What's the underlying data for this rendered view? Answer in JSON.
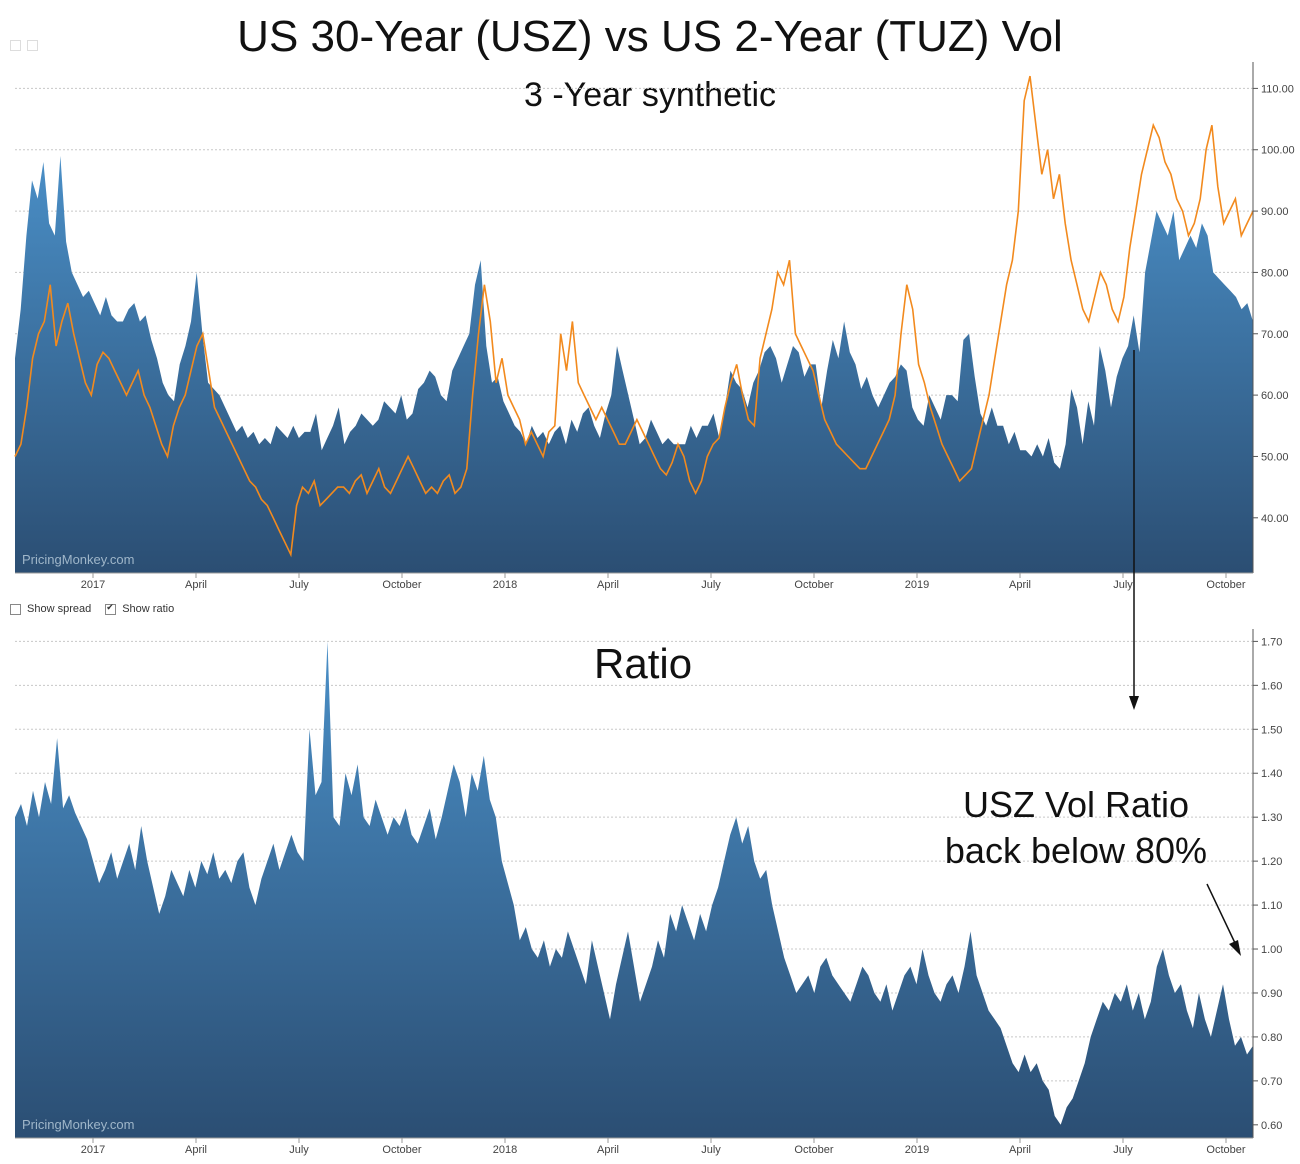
{
  "titles": {
    "main": "US 30-Year (USZ) vs US 2-Year (TUZ) Vol",
    "sub": "3 -Year synthetic",
    "ratio": "Ratio",
    "annotation_line1": "USZ Vol Ratio",
    "annotation_line2": "back below 80%"
  },
  "controls": {
    "show_spread_label": "Show spread",
    "show_ratio_label": "Show ratio",
    "show_spread_checked": false,
    "show_ratio_checked": true
  },
  "watermark": "PricingMonkey.com",
  "colors": {
    "area_top": "#4a8fc7",
    "area_bottom": "#2b4e73",
    "line": "#f28a1e",
    "grid": "#c8c8c8"
  },
  "chart_data": [
    {
      "type": "area",
      "x_tick_labels": [
        "2017",
        "April",
        "July",
        "October",
        "2018",
        "April",
        "July",
        "October",
        "2019",
        "April",
        "July",
        "October"
      ],
      "ylim": [
        31,
        113
      ],
      "y_ticks": [
        "40.00",
        "50.00",
        "60.00",
        "70.00",
        "80.00",
        "90.00",
        "100.00",
        "110.00"
      ],
      "grid": true,
      "series": [
        {
          "kind": "area",
          "values": [
            66,
            74,
            86,
            95,
            92,
            98,
            88,
            86,
            99,
            85,
            80,
            78,
            76,
            77,
            75,
            73,
            76,
            73,
            72,
            72,
            74,
            75,
            72,
            73,
            69,
            66,
            62,
            60,
            59,
            65,
            68,
            72,
            80,
            70,
            62,
            61,
            60,
            58,
            56,
            54,
            55,
            53,
            54,
            52,
            53,
            52,
            55,
            54,
            53,
            55,
            53,
            54,
            54,
            57,
            51,
            53,
            55,
            58,
            52,
            54,
            55,
            57,
            56,
            55,
            56,
            59,
            58,
            57,
            60,
            56,
            57,
            61,
            62,
            64,
            63,
            60,
            59,
            64,
            66,
            68,
            70,
            78,
            82,
            68,
            62,
            63,
            59,
            57,
            55,
            54,
            52,
            55,
            53,
            54,
            52,
            54,
            55,
            52,
            56,
            54,
            57,
            58,
            55,
            53,
            57,
            60,
            68,
            64,
            60,
            56,
            52,
            53,
            56,
            54,
            52,
            53,
            52,
            52,
            52,
            55,
            53,
            55,
            55,
            57,
            53,
            58,
            64,
            62,
            61,
            58,
            62,
            64,
            67,
            68,
            66,
            62,
            65,
            68,
            67,
            63,
            65,
            65,
            58,
            64,
            69,
            66,
            72,
            67,
            65,
            61,
            63,
            60,
            58,
            60,
            62,
            63,
            65,
            64,
            58,
            56,
            55,
            60,
            58,
            56,
            60,
            60,
            59,
            69,
            70,
            63,
            57,
            55,
            58,
            55,
            55,
            52,
            54,
            51,
            51,
            50,
            52,
            50,
            53,
            49,
            48,
            52,
            61,
            58,
            52,
            59,
            55,
            68,
            64,
            58,
            63,
            66,
            68,
            73,
            67,
            80,
            85,
            90,
            88,
            86,
            90,
            82,
            84,
            86,
            84,
            88,
            86,
            80,
            79,
            78,
            77,
            76,
            74,
            75,
            72
          ]
        },
        {
          "kind": "line",
          "values": [
            50,
            52,
            58,
            66,
            70,
            72,
            78,
            68,
            72,
            75,
            70,
            66,
            62,
            60,
            65,
            67,
            66,
            64,
            62,
            60,
            62,
            64,
            60,
            58,
            55,
            52,
            50,
            55,
            58,
            60,
            64,
            68,
            70,
            64,
            58,
            56,
            54,
            52,
            50,
            48,
            46,
            45,
            43,
            42,
            40,
            38,
            36,
            34,
            42,
            45,
            44,
            46,
            42,
            43,
            44,
            45,
            45,
            44,
            46,
            47,
            44,
            46,
            48,
            45,
            44,
            46,
            48,
            50,
            48,
            46,
            44,
            45,
            44,
            46,
            47,
            44,
            45,
            48,
            60,
            70,
            78,
            72,
            62,
            66,
            60,
            58,
            56,
            52,
            54,
            52,
            50,
            54,
            55,
            70,
            64,
            72,
            62,
            60,
            58,
            56,
            58,
            56,
            54,
            52,
            52,
            54,
            56,
            54,
            52,
            50,
            48,
            47,
            49,
            52,
            50,
            46,
            44,
            46,
            50,
            52,
            53,
            58,
            62,
            65,
            60,
            56,
            55,
            66,
            70,
            74,
            80,
            78,
            82,
            70,
            68,
            66,
            64,
            60,
            56,
            54,
            52,
            51,
            50,
            49,
            48,
            48,
            50,
            52,
            54,
            56,
            60,
            70,
            78,
            74,
            65,
            62,
            58,
            55,
            52,
            50,
            48,
            46,
            47,
            48,
            52,
            56,
            60,
            66,
            72,
            78,
            82,
            90,
            108,
            112,
            104,
            96,
            100,
            92,
            96,
            88,
            82,
            78,
            74,
            72,
            76,
            80,
            78,
            74,
            72,
            76,
            84,
            90,
            96,
            100,
            104,
            102,
            98,
            96,
            92,
            90,
            86,
            88,
            92,
            100,
            104,
            94,
            88,
            90,
            92,
            86,
            88,
            90
          ]
        }
      ]
    },
    {
      "type": "area",
      "x_tick_labels": [
        "2017",
        "April",
        "July",
        "October",
        "2018",
        "April",
        "July",
        "October",
        "2019",
        "April",
        "July",
        "October"
      ],
      "ylim": [
        0.57,
        1.71
      ],
      "y_ticks": [
        "0.60",
        "0.70",
        "0.80",
        "0.90",
        "1.00",
        "1.10",
        "1.20",
        "1.30",
        "1.40",
        "1.50",
        "1.60",
        "1.70"
      ],
      "grid": true,
      "series": [
        {
          "kind": "area",
          "values": [
            1.3,
            1.33,
            1.28,
            1.36,
            1.3,
            1.38,
            1.33,
            1.48,
            1.32,
            1.35,
            1.31,
            1.28,
            1.25,
            1.2,
            1.15,
            1.18,
            1.22,
            1.16,
            1.2,
            1.24,
            1.18,
            1.28,
            1.2,
            1.14,
            1.08,
            1.12,
            1.18,
            1.15,
            1.12,
            1.18,
            1.14,
            1.2,
            1.17,
            1.22,
            1.16,
            1.18,
            1.15,
            1.2,
            1.22,
            1.14,
            1.1,
            1.16,
            1.2,
            1.24,
            1.18,
            1.22,
            1.26,
            1.22,
            1.2,
            1.5,
            1.35,
            1.38,
            1.7,
            1.3,
            1.28,
            1.4,
            1.35,
            1.42,
            1.3,
            1.28,
            1.34,
            1.3,
            1.26,
            1.3,
            1.28,
            1.32,
            1.26,
            1.24,
            1.28,
            1.32,
            1.25,
            1.3,
            1.36,
            1.42,
            1.38,
            1.3,
            1.4,
            1.36,
            1.44,
            1.34,
            1.3,
            1.2,
            1.15,
            1.1,
            1.02,
            1.05,
            1.0,
            0.98,
            1.02,
            0.96,
            1.0,
            0.98,
            1.04,
            1.0,
            0.96,
            0.92,
            1.02,
            0.96,
            0.9,
            0.84,
            0.92,
            0.98,
            1.04,
            0.96,
            0.88,
            0.92,
            0.96,
            1.02,
            0.98,
            1.08,
            1.04,
            1.1,
            1.06,
            1.02,
            1.08,
            1.04,
            1.1,
            1.14,
            1.2,
            1.26,
            1.3,
            1.24,
            1.28,
            1.2,
            1.16,
            1.18,
            1.1,
            1.04,
            0.98,
            0.94,
            0.9,
            0.92,
            0.94,
            0.9,
            0.96,
            0.98,
            0.94,
            0.92,
            0.9,
            0.88,
            0.92,
            0.96,
            0.94,
            0.9,
            0.88,
            0.92,
            0.86,
            0.9,
            0.94,
            0.96,
            0.92,
            1.0,
            0.94,
            0.9,
            0.88,
            0.92,
            0.94,
            0.9,
            0.96,
            1.04,
            0.94,
            0.9,
            0.86,
            0.84,
            0.82,
            0.78,
            0.74,
            0.72,
            0.76,
            0.72,
            0.74,
            0.7,
            0.68,
            0.62,
            0.6,
            0.64,
            0.66,
            0.7,
            0.74,
            0.8,
            0.84,
            0.88,
            0.86,
            0.9,
            0.88,
            0.92,
            0.86,
            0.9,
            0.84,
            0.88,
            0.96,
            1.0,
            0.94,
            0.9,
            0.92,
            0.86,
            0.82,
            0.9,
            0.84,
            0.8,
            0.86,
            0.92,
            0.84,
            0.78,
            0.8,
            0.76,
            0.78
          ]
        }
      ]
    }
  ]
}
